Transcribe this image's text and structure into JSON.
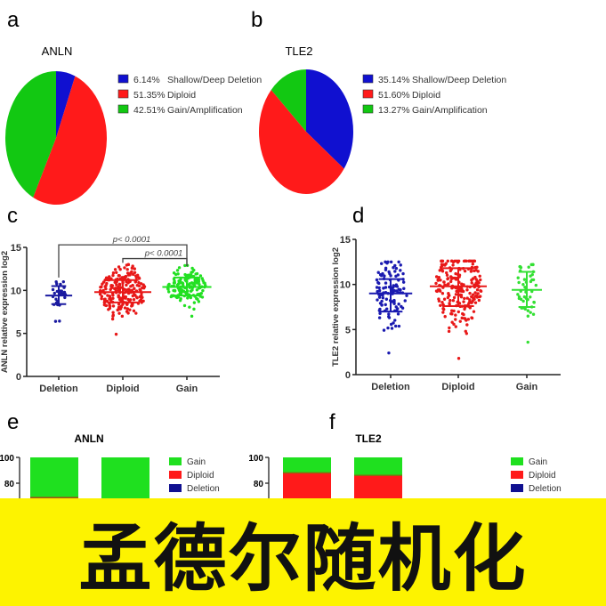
{
  "banner": {
    "text": "孟德尔随机化",
    "color": "#fdf300"
  },
  "colors": {
    "deletion": "#1010c0",
    "diploid": "#ff1a1a",
    "gain": "#1fe01f",
    "axis": "#222222"
  },
  "chart_data": [
    {
      "panel": "a",
      "type": "pie",
      "title": "ANLN",
      "slices": [
        {
          "label": "Shallow/Deep Deletion",
          "pct_label": "6.14%",
          "value": 6.14,
          "color": "#1010d0"
        },
        {
          "label": "Diploid",
          "pct_label": "51.35%",
          "value": 51.35,
          "color": "#ff1a1a"
        },
        {
          "label": "Gain/Amplification",
          "pct_label": "42.51%",
          "value": 42.51,
          "color": "#12c812"
        }
      ],
      "legend": "right"
    },
    {
      "panel": "b",
      "type": "pie",
      "title": "TLE2",
      "slices": [
        {
          "label": "Shallow/Deep Deletion",
          "pct_label": "35.14%",
          "value": 35.14,
          "color": "#1010d0"
        },
        {
          "label": "Diploid",
          "pct_label": "51.60%",
          "value": 51.6,
          "color": "#ff1a1a"
        },
        {
          "label": "Gain/Amplification",
          "pct_label": "13.27%",
          "value": 13.27,
          "color": "#12c812"
        }
      ],
      "legend": "right"
    },
    {
      "panel": "c",
      "type": "scatter",
      "ylabel": "ANLN relative expression log2",
      "ylim": [
        0,
        15
      ],
      "yticks": [
        "0",
        "5",
        "10",
        "15"
      ],
      "categories": [
        "Deletion",
        "Diploid",
        "Gain"
      ],
      "groups": [
        {
          "mean": 9.4,
          "sd_low": 8.4,
          "sd_high": 10.5,
          "min": 6.4,
          "max": 11.0,
          "color": "#1a1aa0"
        },
        {
          "mean": 9.8,
          "sd_low": 8.6,
          "sd_high": 11.2,
          "min": 4.9,
          "max": 13.0,
          "color": "#e81818"
        },
        {
          "mean": 10.4,
          "sd_low": 9.4,
          "sd_high": 11.5,
          "min": 7.0,
          "max": 12.9,
          "color": "#22e022"
        }
      ],
      "annotations": [
        {
          "text": "p< 0.0001",
          "from": "Deletion",
          "to": "Gain"
        },
        {
          "text": "p< 0.0001",
          "from": "Diploid",
          "to": "Gain"
        }
      ]
    },
    {
      "panel": "d",
      "type": "scatter",
      "ylabel": "TLE2 relative expression log2",
      "ylim": [
        0,
        15
      ],
      "yticks": [
        "0",
        "5",
        "10",
        "15"
      ],
      "categories": [
        "Deletion",
        "Diploid",
        "Gain"
      ],
      "groups": [
        {
          "mean": 9.0,
          "sd_low": 7.0,
          "sd_high": 10.6,
          "min": 2.4,
          "max": 12.5,
          "color": "#1a1ab0"
        },
        {
          "mean": 9.8,
          "sd_low": 7.6,
          "sd_high": 11.8,
          "min": 1.8,
          "max": 12.6,
          "color": "#e81818"
        },
        {
          "mean": 9.4,
          "sd_low": 7.5,
          "sd_high": 11.4,
          "min": 3.6,
          "max": 12.2,
          "color": "#33e033"
        }
      ]
    },
    {
      "panel": "e",
      "type": "bar",
      "stacked": true,
      "title": "ANLN",
      "yticks": [
        "100",
        "80"
      ],
      "ylim": [
        0,
        100
      ],
      "bars": [
        {
          "Gain": 31,
          "Diploid": 69
        },
        {
          "Gain": 100,
          "Diploid": 0
        }
      ],
      "legend": [
        "Gain",
        "Diploid",
        "Deletion"
      ]
    },
    {
      "panel": "f",
      "type": "bar",
      "stacked": true,
      "title": "TLE2",
      "yticks": [
        "100",
        "80"
      ],
      "ylim": [
        0,
        100
      ],
      "bars": [
        {
          "Gain": 12,
          "Diploid": 88
        },
        {
          "Gain": 14,
          "Diploid": 86
        }
      ],
      "legend": [
        "Gain",
        "Diploid",
        "Deletion"
      ]
    }
  ]
}
